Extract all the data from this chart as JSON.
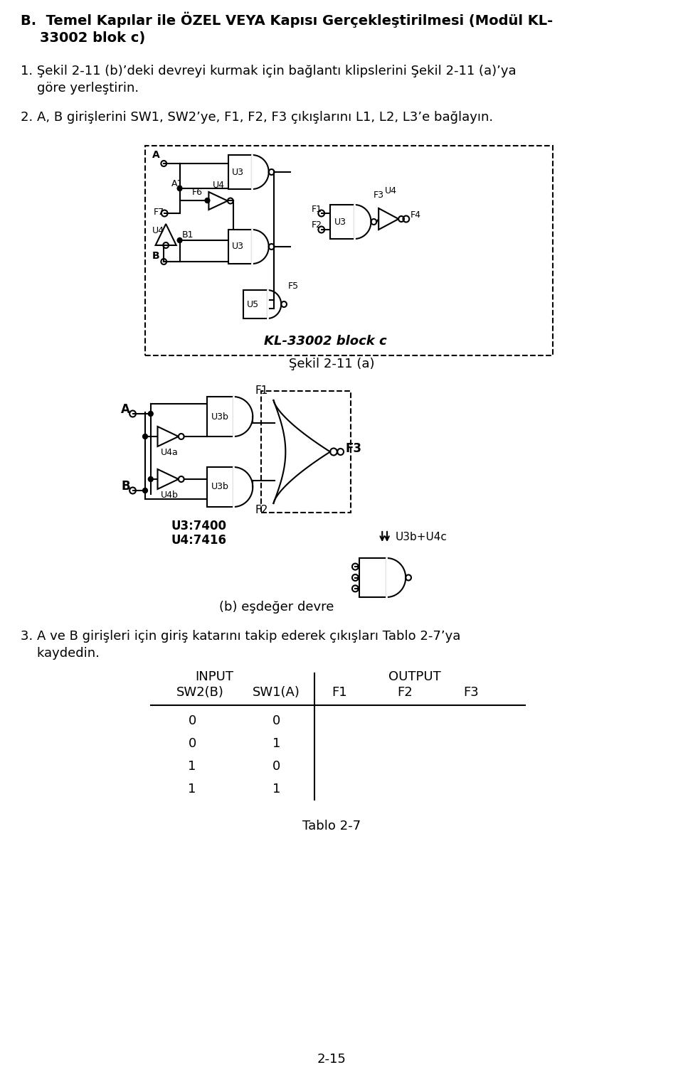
{
  "bg_color": "#ffffff",
  "title_line1": "B.  Temel Kapılar ile ÖZEL VEYA Kapısı Gerçekleştirilmesi (Modül KL-",
  "title_line2": "    33002 blok c)",
  "para1_line1": "1. Şekil 2-11 (b)’deki devreyi kurmak için bağlantı klipslerini Şekil 2-11 (a)’ya",
  "para1_line2": "    göre yerleştirin.",
  "para2": "2. A, B girişlerini SW1, SW2’ye, F1, F2, F3 çıkışlarını L1, L2, L3’e bağlayın.",
  "caption_a": "Şekil 2-11 (a)",
  "caption_b": "(b) eşdeğer devre",
  "kl_label": "KL-33002 block c",
  "u3_u4_label1": "U3:7400",
  "u3_u4_label2": "U4:7416",
  "arrow_label": "⇓ U3b+U4c",
  "para3_line1": "3. A ve B girişleri için giriş katarını takip ederek çıkışları Tablo 2-7’ya",
  "para3_line2": "    kaydedin.",
  "tbl_input": "INPUT",
  "tbl_output": "OUTPUT",
  "tbl_sw2b": "SW2(B)",
  "tbl_sw1a": "SW1(A)",
  "tbl_f1": "F1",
  "tbl_f2": "F2",
  "tbl_f3": "F3",
  "tbl_rows": [
    [
      "0",
      "0"
    ],
    [
      "0",
      "1"
    ],
    [
      "1",
      "0"
    ],
    [
      "1",
      "1"
    ]
  ],
  "tablo_label": "Tablo 2-7",
  "page_num": "2-15"
}
